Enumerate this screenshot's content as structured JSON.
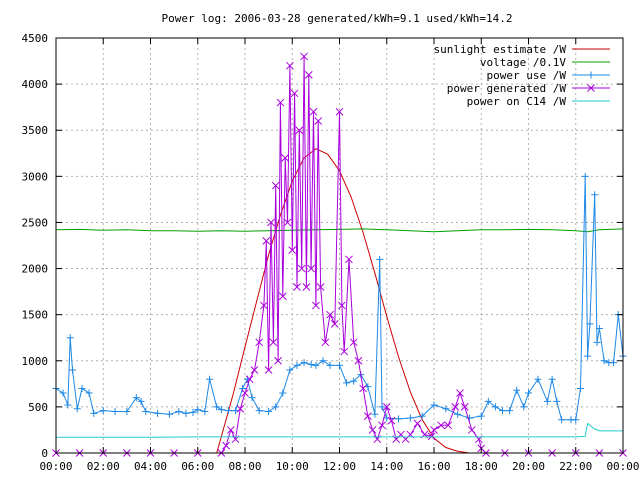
{
  "chart_data": {
    "type": "line",
    "title": "Power log: 2006-03-28 generated/kWh=9.1 used/kWh=14.2",
    "xlabel": "",
    "ylabel": "",
    "x_unit": "hours",
    "xlim": [
      0,
      24
    ],
    "ylim": [
      0,
      4500
    ],
    "grid": true,
    "legend_position": "top-right",
    "x_ticks": [
      "00:00",
      "02:00",
      "04:00",
      "06:00",
      "08:00",
      "10:00",
      "12:00",
      "14:00",
      "16:00",
      "18:00",
      "20:00",
      "22:00",
      "00:00"
    ],
    "y_ticks": [
      0,
      500,
      1000,
      1500,
      2000,
      2500,
      3000,
      3500,
      4000,
      4500
    ],
    "series": [
      {
        "name": "sunlight estimate /W",
        "color": "#cc0000",
        "marker": "none",
        "points": [
          [
            6.8,
            0
          ],
          [
            7.0,
            180
          ],
          [
            7.5,
            640
          ],
          [
            8.0,
            1150
          ],
          [
            8.5,
            1650
          ],
          [
            9.0,
            2150
          ],
          [
            9.5,
            2580
          ],
          [
            10.0,
            2950
          ],
          [
            10.5,
            3200
          ],
          [
            11.0,
            3300
          ],
          [
            11.5,
            3240
          ],
          [
            12.0,
            3060
          ],
          [
            12.5,
            2770
          ],
          [
            13.0,
            2390
          ],
          [
            13.5,
            1950
          ],
          [
            14.0,
            1480
          ],
          [
            14.5,
            1040
          ],
          [
            15.0,
            660
          ],
          [
            15.5,
            360
          ],
          [
            16.0,
            160
          ],
          [
            16.5,
            60
          ],
          [
            17.0,
            20
          ],
          [
            17.5,
            0
          ]
        ]
      },
      {
        "name": "voltage /0.1V",
        "color": "#00a000",
        "marker": "none",
        "points": [
          [
            0,
            2420
          ],
          [
            1,
            2425
          ],
          [
            2,
            2415
          ],
          [
            3,
            2420
          ],
          [
            4,
            2410
          ],
          [
            5,
            2410
          ],
          [
            6,
            2405
          ],
          [
            7,
            2410
          ],
          [
            8,
            2405
          ],
          [
            9,
            2410
          ],
          [
            10,
            2415
          ],
          [
            11,
            2420
          ],
          [
            12,
            2425
          ],
          [
            13,
            2430
          ],
          [
            14,
            2420
          ],
          [
            15,
            2410
          ],
          [
            16,
            2400
          ],
          [
            17,
            2410
          ],
          [
            18,
            2420
          ],
          [
            19,
            2420
          ],
          [
            20,
            2425
          ],
          [
            21,
            2420
          ],
          [
            22,
            2410
          ],
          [
            22.5,
            2400
          ],
          [
            23,
            2420
          ],
          [
            24,
            2430
          ]
        ]
      },
      {
        "name": "power use /W",
        "color": "#1e88e5",
        "marker": "plus",
        "points": [
          [
            0,
            700
          ],
          [
            0.3,
            650
          ],
          [
            0.5,
            520
          ],
          [
            0.6,
            1250
          ],
          [
            0.7,
            900
          ],
          [
            0.9,
            480
          ],
          [
            1.1,
            700
          ],
          [
            1.4,
            650
          ],
          [
            1.6,
            430
          ],
          [
            2.0,
            460
          ],
          [
            2.5,
            450
          ],
          [
            3.0,
            450
          ],
          [
            3.4,
            600
          ],
          [
            3.6,
            560
          ],
          [
            3.8,
            450
          ],
          [
            4.3,
            430
          ],
          [
            4.8,
            420
          ],
          [
            5.2,
            450
          ],
          [
            5.5,
            430
          ],
          [
            5.8,
            440
          ],
          [
            6.0,
            470
          ],
          [
            6.3,
            450
          ],
          [
            6.5,
            800
          ],
          [
            6.8,
            500
          ],
          [
            7.0,
            470
          ],
          [
            7.3,
            460
          ],
          [
            7.6,
            460
          ],
          [
            7.9,
            700
          ],
          [
            8.1,
            800
          ],
          [
            8.3,
            600
          ],
          [
            8.6,
            460
          ],
          [
            9.0,
            450
          ],
          [
            9.3,
            500
          ],
          [
            9.6,
            650
          ],
          [
            9.9,
            900
          ],
          [
            10.2,
            950
          ],
          [
            10.5,
            980
          ],
          [
            10.8,
            960
          ],
          [
            11.0,
            950
          ],
          [
            11.3,
            1000
          ],
          [
            11.6,
            950
          ],
          [
            12.0,
            950
          ],
          [
            12.3,
            760
          ],
          [
            12.6,
            780
          ],
          [
            12.9,
            850
          ],
          [
            13.2,
            720
          ],
          [
            13.5,
            420
          ],
          [
            13.7,
            2100
          ],
          [
            13.8,
            500
          ],
          [
            14.0,
            380
          ],
          [
            14.5,
            370
          ],
          [
            15.0,
            380
          ],
          [
            15.5,
            400
          ],
          [
            16.0,
            520
          ],
          [
            16.5,
            480
          ],
          [
            17.0,
            420
          ],
          [
            17.5,
            380
          ],
          [
            18.0,
            400
          ],
          [
            18.3,
            560
          ],
          [
            18.6,
            500
          ],
          [
            18.9,
            460
          ],
          [
            19.2,
            460
          ],
          [
            19.5,
            680
          ],
          [
            19.8,
            500
          ],
          [
            20.0,
            650
          ],
          [
            20.4,
            800
          ],
          [
            20.8,
            560
          ],
          [
            21.0,
            800
          ],
          [
            21.2,
            560
          ],
          [
            21.4,
            360
          ],
          [
            21.8,
            360
          ],
          [
            22.0,
            360
          ],
          [
            22.2,
            700
          ],
          [
            22.4,
            3000
          ],
          [
            22.5,
            1050
          ],
          [
            22.6,
            1400
          ],
          [
            22.8,
            2800
          ],
          [
            22.9,
            1200
          ],
          [
            23.0,
            1350
          ],
          [
            23.2,
            1000
          ],
          [
            23.4,
            980
          ],
          [
            23.6,
            980
          ],
          [
            23.8,
            1500
          ],
          [
            24.0,
            1050
          ]
        ]
      },
      {
        "name": "power generated /W",
        "color": "#aa00dd",
        "marker": "x",
        "points": [
          [
            0,
            0
          ],
          [
            1,
            0
          ],
          [
            2,
            0
          ],
          [
            3,
            0
          ],
          [
            4,
            0
          ],
          [
            5,
            0
          ],
          [
            6,
            0
          ],
          [
            7.0,
            0
          ],
          [
            7.2,
            80
          ],
          [
            7.4,
            250
          ],
          [
            7.6,
            150
          ],
          [
            7.8,
            480
          ],
          [
            8.0,
            650
          ],
          [
            8.2,
            800
          ],
          [
            8.4,
            900
          ],
          [
            8.6,
            1200
          ],
          [
            8.8,
            1600
          ],
          [
            8.9,
            2300
          ],
          [
            9.0,
            900
          ],
          [
            9.1,
            2500
          ],
          [
            9.2,
            1200
          ],
          [
            9.3,
            2900
          ],
          [
            9.4,
            1000
          ],
          [
            9.5,
            3800
          ],
          [
            9.6,
            1700
          ],
          [
            9.7,
            3200
          ],
          [
            9.8,
            2500
          ],
          [
            9.9,
            4200
          ],
          [
            10.0,
            2200
          ],
          [
            10.1,
            3900
          ],
          [
            10.2,
            1800
          ],
          [
            10.3,
            3500
          ],
          [
            10.4,
            2000
          ],
          [
            10.5,
            4300
          ],
          [
            10.6,
            1800
          ],
          [
            10.7,
            4100
          ],
          [
            10.8,
            2000
          ],
          [
            10.9,
            3700
          ],
          [
            11.0,
            1600
          ],
          [
            11.1,
            3600
          ],
          [
            11.2,
            1800
          ],
          [
            11.4,
            1200
          ],
          [
            11.6,
            1500
          ],
          [
            11.8,
            1400
          ],
          [
            12.0,
            3700
          ],
          [
            12.1,
            1600
          ],
          [
            12.2,
            1100
          ],
          [
            12.4,
            2100
          ],
          [
            12.6,
            1200
          ],
          [
            12.8,
            1000
          ],
          [
            13.0,
            700
          ],
          [
            13.2,
            400
          ],
          [
            13.4,
            250
          ],
          [
            13.6,
            150
          ],
          [
            13.8,
            300
          ],
          [
            14.0,
            500
          ],
          [
            14.2,
            350
          ],
          [
            14.4,
            150
          ],
          [
            14.6,
            200
          ],
          [
            14.8,
            150
          ],
          [
            15.0,
            200
          ],
          [
            15.3,
            320
          ],
          [
            15.6,
            200
          ],
          [
            15.9,
            180
          ],
          [
            16.0,
            250
          ],
          [
            16.3,
            300
          ],
          [
            16.6,
            300
          ],
          [
            16.9,
            500
          ],
          [
            17.1,
            650
          ],
          [
            17.3,
            500
          ],
          [
            17.6,
            250
          ],
          [
            17.9,
            150
          ],
          [
            18.0,
            50
          ],
          [
            18.2,
            0
          ],
          [
            19,
            0
          ],
          [
            20,
            0
          ],
          [
            21,
            0
          ],
          [
            22,
            0
          ],
          [
            23,
            0
          ],
          [
            24,
            0
          ]
        ]
      },
      {
        "name": "power on C14 /W",
        "color": "#22cccc",
        "marker": "none",
        "points": [
          [
            0,
            170
          ],
          [
            2,
            170
          ],
          [
            4,
            170
          ],
          [
            6,
            175
          ],
          [
            8,
            175
          ],
          [
            10,
            175
          ],
          [
            12,
            175
          ],
          [
            14,
            175
          ],
          [
            16,
            175
          ],
          [
            18,
            175
          ],
          [
            20,
            175
          ],
          [
            22,
            175
          ],
          [
            22.4,
            180
          ],
          [
            22.5,
            320
          ],
          [
            22.8,
            260
          ],
          [
            23.0,
            240
          ],
          [
            24,
            240
          ]
        ]
      }
    ]
  }
}
